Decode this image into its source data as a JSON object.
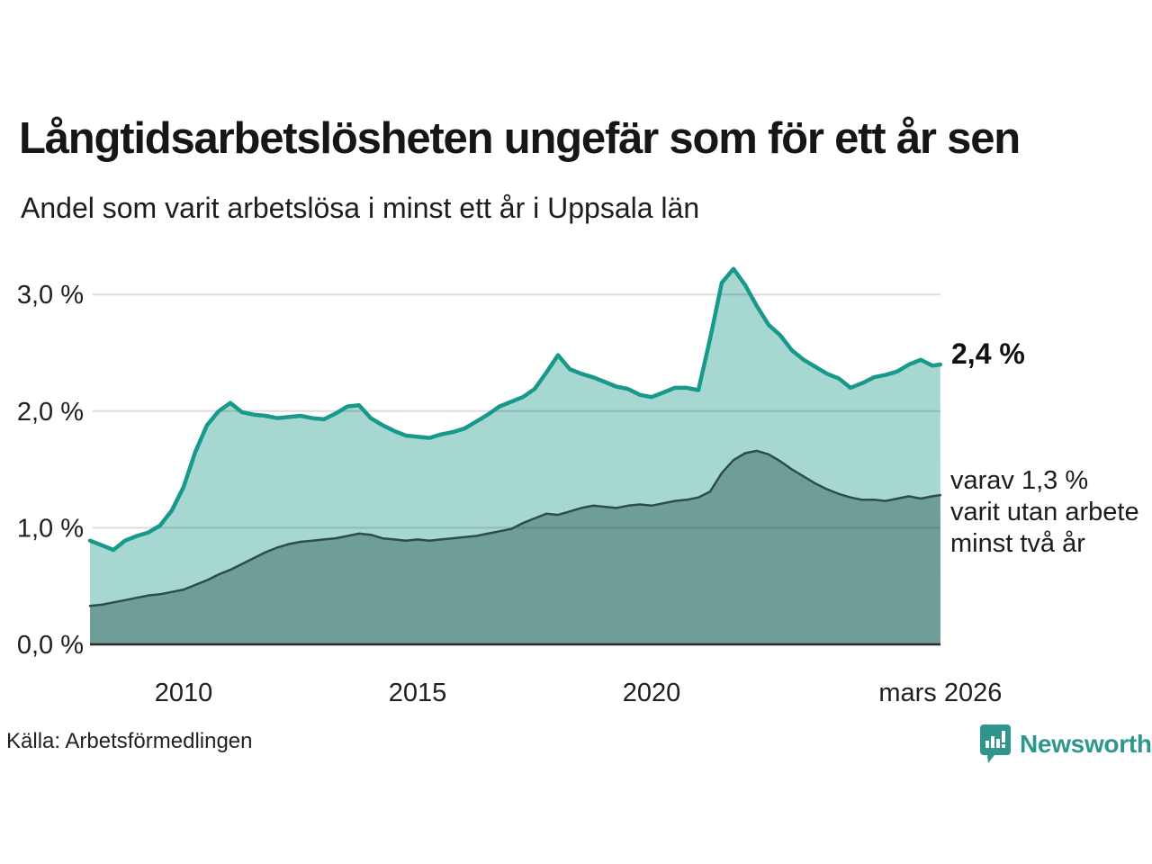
{
  "header": {
    "title": "Långtidsarbetslösheten ungefär som för ett år sen",
    "subtitle": "Andel som varit arbetslösa i minst ett år i Uppsala län"
  },
  "annotations": {
    "latest_total": "2,4 %",
    "secondary_lines": [
      "varav 1,3 %",
      "varit utan arbete",
      "minst två år"
    ]
  },
  "footer": {
    "source": "Källa: Arbetsförmedlingen",
    "brand_name": "Newsworthy",
    "brand_color": "#2e968c",
    "brand_icon": "chart-bubble-icon"
  },
  "chart_data": {
    "type": "area",
    "title": "Långtidsarbetslösheten ungefär som för ett år sen",
    "subtitle": "Andel som varit arbetslösa i minst ett år i Uppsala län",
    "x_unit": "decimal_year_monthly_series",
    "x_range": [
      2008.0,
      2026.17
    ],
    "ylim": [
      0,
      3.3
    ],
    "grid": "horizontal",
    "legend_position": "line-end-annotations",
    "yticks": [
      {
        "value": 3.0,
        "label": "3,0 %"
      },
      {
        "value": 2.0,
        "label": "2,0 %"
      },
      {
        "value": 1.0,
        "label": "1,0 %"
      },
      {
        "value": 0.0,
        "label": "0,0 %"
      }
    ],
    "xticks": [
      {
        "value": 2010.0,
        "label": "2010"
      },
      {
        "value": 2015.0,
        "label": "2015"
      },
      {
        "value": 2020.0,
        "label": "2020"
      },
      {
        "value": 2026.17,
        "label": "mars 2026"
      }
    ],
    "x": [
      2008.0,
      2008.25,
      2008.5,
      2008.75,
      2009.0,
      2009.25,
      2009.5,
      2009.75,
      2010.0,
      2010.25,
      2010.5,
      2010.75,
      2011.0,
      2011.25,
      2011.5,
      2011.75,
      2012.0,
      2012.25,
      2012.5,
      2012.75,
      2013.0,
      2013.25,
      2013.5,
      2013.75,
      2014.0,
      2014.25,
      2014.5,
      2014.75,
      2015.0,
      2015.25,
      2015.5,
      2015.75,
      2016.0,
      2016.25,
      2016.5,
      2016.75,
      2017.0,
      2017.25,
      2017.5,
      2017.75,
      2018.0,
      2018.25,
      2018.5,
      2018.75,
      2019.0,
      2019.25,
      2019.5,
      2019.75,
      2020.0,
      2020.25,
      2020.5,
      2020.75,
      2021.0,
      2021.25,
      2021.5,
      2021.75,
      2022.0,
      2022.25,
      2022.5,
      2022.75,
      2023.0,
      2023.25,
      2023.5,
      2023.75,
      2024.0,
      2024.25,
      2024.5,
      2024.75,
      2025.0,
      2025.25,
      2025.5,
      2025.75,
      2026.0,
      2026.17
    ],
    "series": [
      {
        "id": "minst-ett-ar",
        "name": "Andel arbetslösa minst ett år",
        "line_color": "#18998b",
        "fill_color": "#a6d8d1",
        "line_width": 4.5,
        "end_label": "2,4 %",
        "end_value": 2.4,
        "values": [
          0.89,
          0.85,
          0.81,
          0.89,
          0.93,
          0.96,
          1.02,
          1.15,
          1.35,
          1.65,
          1.88,
          2.0,
          2.07,
          1.99,
          1.97,
          1.96,
          1.94,
          1.95,
          1.96,
          1.94,
          1.93,
          1.98,
          2.04,
          2.05,
          1.94,
          1.88,
          1.83,
          1.79,
          1.78,
          1.77,
          1.8,
          1.82,
          1.85,
          1.91,
          1.97,
          2.04,
          2.08,
          2.12,
          2.19,
          2.33,
          2.48,
          2.36,
          2.32,
          2.29,
          2.25,
          2.21,
          2.19,
          2.14,
          2.12,
          2.16,
          2.2,
          2.2,
          2.18,
          2.62,
          3.1,
          3.22,
          3.08,
          2.9,
          2.74,
          2.65,
          2.52,
          2.44,
          2.38,
          2.32,
          2.28,
          2.2,
          2.24,
          2.29,
          2.31,
          2.34,
          2.4,
          2.44,
          2.39,
          2.4
        ]
      },
      {
        "id": "minst-tva-ar",
        "name": "varav utan arbete minst två år",
        "line_color": "#2e4d48",
        "fill_color": "#6f9e99",
        "line_width": 2.5,
        "end_label": "varav 1,3 % varit utan arbete minst två år",
        "end_value": 1.3,
        "values": [
          0.33,
          0.34,
          0.36,
          0.38,
          0.4,
          0.42,
          0.43,
          0.45,
          0.47,
          0.51,
          0.55,
          0.6,
          0.64,
          0.69,
          0.74,
          0.79,
          0.83,
          0.86,
          0.88,
          0.89,
          0.9,
          0.91,
          0.93,
          0.95,
          0.94,
          0.91,
          0.9,
          0.89,
          0.9,
          0.89,
          0.9,
          0.91,
          0.92,
          0.93,
          0.95,
          0.97,
          0.99,
          1.04,
          1.08,
          1.12,
          1.11,
          1.14,
          1.17,
          1.19,
          1.18,
          1.17,
          1.19,
          1.2,
          1.19,
          1.21,
          1.23,
          1.24,
          1.26,
          1.31,
          1.47,
          1.58,
          1.64,
          1.66,
          1.63,
          1.57,
          1.5,
          1.44,
          1.38,
          1.33,
          1.29,
          1.26,
          1.24,
          1.24,
          1.23,
          1.25,
          1.27,
          1.25,
          1.27,
          1.28
        ]
      }
    ]
  }
}
